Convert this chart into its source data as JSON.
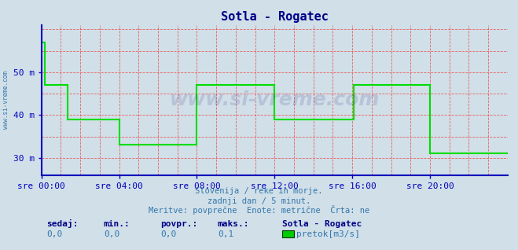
{
  "title": "Sotla - Rogatec",
  "bg_color": "#d0dfe8",
  "plot_bg_color": "#d0dfe8",
  "line_color": "#00dd00",
  "axis_color": "#0000bb",
  "grid_color": "#ee4444",
  "xlabel_ticks": [
    "sre 00:00",
    "sre 04:00",
    "sre 08:00",
    "sre 12:00",
    "sre 16:00",
    "sre 20:00"
  ],
  "ytick_labels": [
    "30 m",
    "40 m",
    "50 m"
  ],
  "ytick_values": [
    30,
    40,
    50
  ],
  "ylim": [
    26,
    61
  ],
  "xlim": [
    0,
    288
  ],
  "watermark_text": "www.si-vreme.com",
  "subtitle1": "Slovenija / reke in morje.",
  "subtitle2": "zadnji dan / 5 minut.",
  "subtitle3": "Meritve: povprečne  Enote: metrične  Črta: ne",
  "footer_labels": [
    "sedaj:",
    "min.:",
    "povpr.:",
    "maks.:"
  ],
  "footer_values": [
    "0,0",
    "0,0",
    "0,0",
    "0,1"
  ],
  "legend_station": "Sotla - Rogatec",
  "legend_label": "pretok[m3/s]",
  "legend_color": "#00cc00",
  "x_data": [
    0,
    2,
    2,
    16,
    16,
    48,
    48,
    96,
    96,
    100,
    100,
    144,
    144,
    193,
    193,
    240,
    240,
    288
  ],
  "y_data": [
    57,
    57,
    47,
    47,
    39,
    39,
    33,
    33,
    47,
    47,
    47,
    47,
    39,
    39,
    47,
    47,
    31,
    31
  ],
  "title_fontsize": 11,
  "tick_fontsize": 8,
  "text_color_blue": "#000088",
  "text_color_cyan": "#3377aa",
  "side_label": "www.si-vreme.com"
}
